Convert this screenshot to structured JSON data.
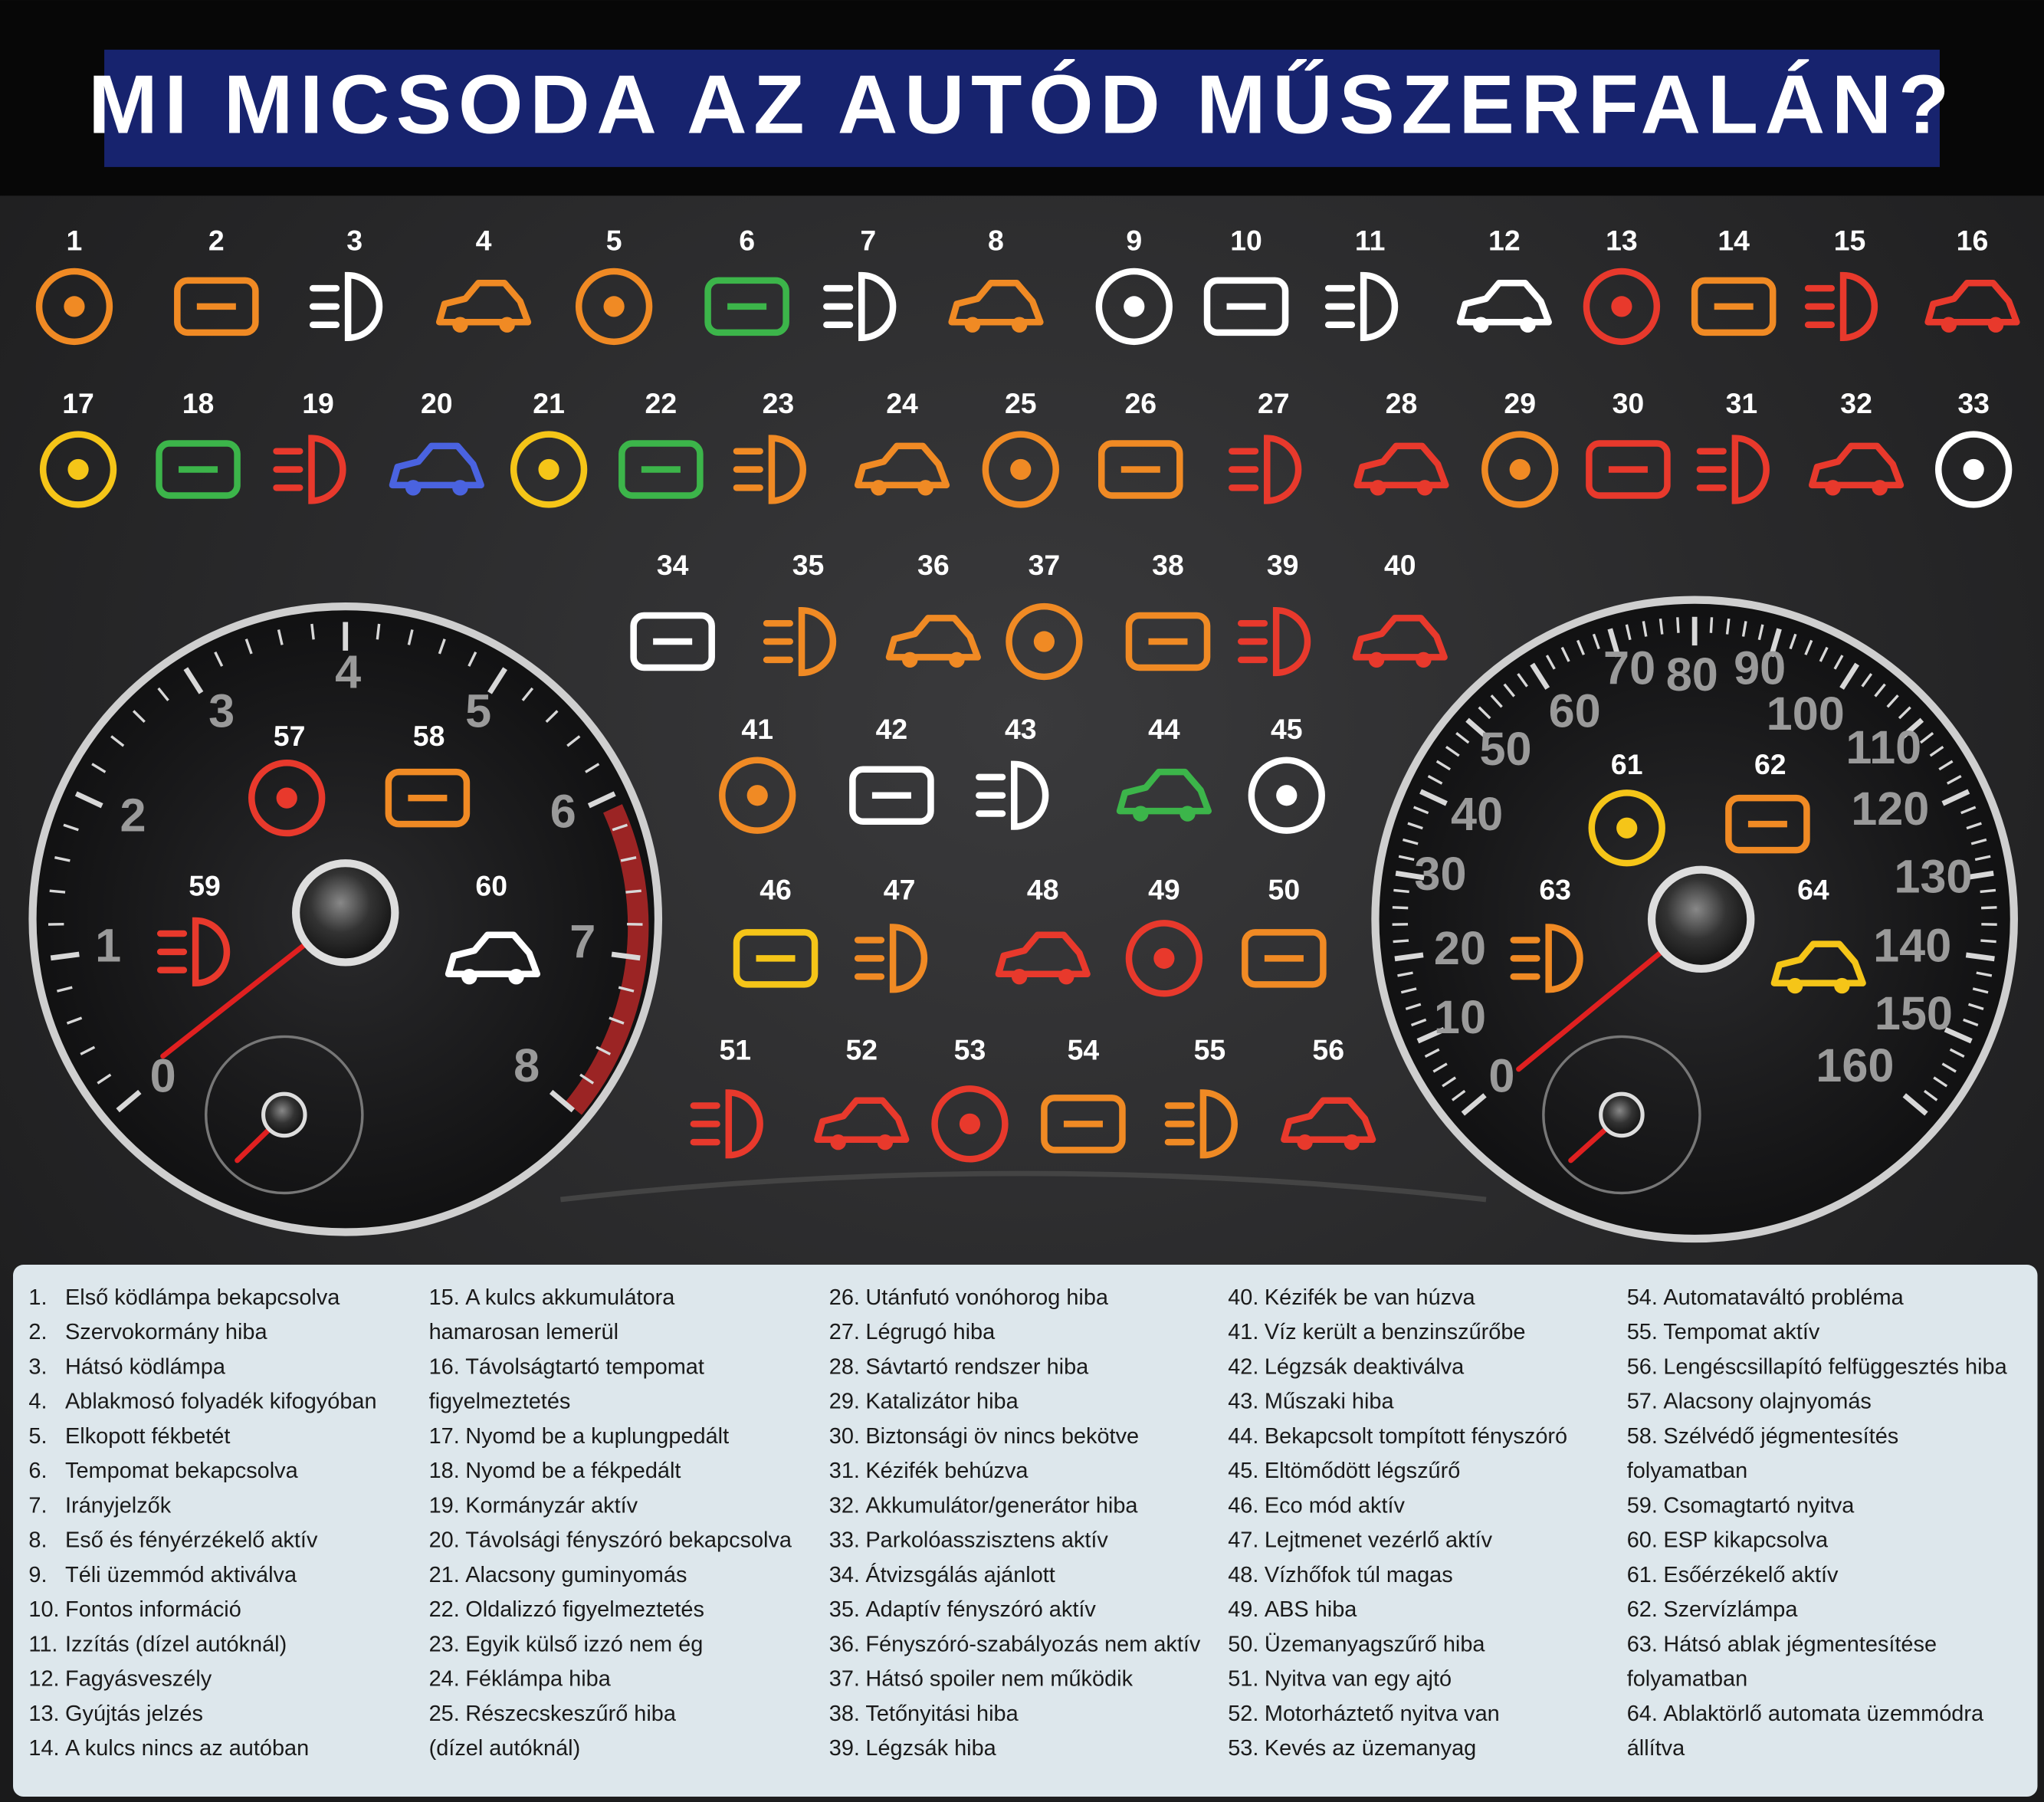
{
  "title": "MI MICSODA AZ AUTÓD MŰSZERFALÁN?",
  "lights": [
    "1",
    "2",
    "3",
    "4",
    "5",
    "6",
    "7",
    "8",
    "9",
    "10",
    "11",
    "12",
    "13",
    "14",
    "15",
    "16",
    "17",
    "18",
    "19",
    "20",
    "21",
    "22",
    "23",
    "24",
    "25",
    "26",
    "27",
    "28",
    "29",
    "30",
    "31",
    "32",
    "33",
    "34",
    "35",
    "36",
    "37",
    "38",
    "39",
    "40",
    "41",
    "42",
    "43",
    "44",
    "45",
    "46",
    "47",
    "48",
    "49",
    "50",
    "51",
    "52",
    "53",
    "54",
    "55",
    "56",
    "57",
    "58",
    "59",
    "60",
    "61",
    "62",
    "63",
    "64"
  ],
  "tachometer": {
    "labels": [
      "0",
      "1",
      "2",
      "3",
      "4",
      "5",
      "6",
      "7",
      "8"
    ]
  },
  "speedometer": {
    "labels": [
      "0",
      "10",
      "20",
      "30",
      "40",
      "50",
      "60",
      "70",
      "80",
      "90",
      "100",
      "110",
      "120",
      "130",
      "140",
      "150",
      "160"
    ]
  },
  "legend": [
    {
      "number": "1.",
      "lines": [
        "Első ködlámpa bekapcsolva"
      ]
    },
    {
      "number": "2.",
      "lines": [
        "Szervokormány hiba"
      ]
    },
    {
      "number": "3.",
      "lines": [
        "Hátsó ködlámpa"
      ]
    },
    {
      "number": "4.",
      "lines": [
        "Ablakmosó folyadék kifogyóban"
      ]
    },
    {
      "number": "5.",
      "lines": [
        "Elkopott fékbetét"
      ]
    },
    {
      "number": "6.",
      "lines": [
        "Tempomat bekapcsolva"
      ]
    },
    {
      "number": "7.",
      "lines": [
        "Irányjelzők"
      ]
    },
    {
      "number": "8.",
      "lines": [
        "Eső és fényérzékelő aktív"
      ]
    },
    {
      "number": "9.",
      "lines": [
        "Téli üzemmód aktiválva"
      ]
    },
    {
      "number": "10.",
      "lines": [
        "Fontos információ"
      ]
    },
    {
      "number": "11.",
      "lines": [
        "Izzítás (dízel autóknál)"
      ]
    },
    {
      "number": "12.",
      "lines": [
        "Fagyásveszély"
      ]
    },
    {
      "number": "13.",
      "lines": [
        "Gyújtás jelzés"
      ]
    },
    {
      "number": "14.",
      "lines": [
        "A kulcs nincs az autóban"
      ]
    },
    {
      "number": "15.",
      "lines": [
        "A kulcs akkumulátora",
        "hamarosan lemerül"
      ]
    },
    {
      "number": "16.",
      "lines": [
        "Távolságtartó tempomat",
        "figyelmeztetés"
      ]
    },
    {
      "number": "17.",
      "lines": [
        "Nyomd be a kuplungpedált"
      ]
    },
    {
      "number": "18.",
      "lines": [
        "Nyomd be a fékpedált"
      ]
    },
    {
      "number": "19.",
      "lines": [
        "Kormányzár aktív"
      ]
    },
    {
      "number": "20.",
      "lines": [
        "Távolsági fényszóró bekapcsolva"
      ]
    },
    {
      "number": "21.",
      "lines": [
        "Alacsony guminyomás"
      ]
    },
    {
      "number": "22.",
      "lines": [
        "Oldalizzó figyelmeztetés"
      ]
    },
    {
      "number": "23.",
      "lines": [
        "Egyik külső izzó nem ég"
      ]
    },
    {
      "number": "24.",
      "lines": [
        "Féklámpa hiba"
      ]
    },
    {
      "number": "25.",
      "lines": [
        "Részecskeszűrő hiba",
        "(dízel autóknál)"
      ]
    },
    {
      "number": "26.",
      "lines": [
        "Utánfutó vonóhorog hiba"
      ]
    },
    {
      "number": "27.",
      "lines": [
        "Légrugó hiba"
      ]
    },
    {
      "number": "28.",
      "lines": [
        "Sávtartó rendszer hiba"
      ]
    },
    {
      "number": "29.",
      "lines": [
        "Katalizátor hiba"
      ]
    },
    {
      "number": "30.",
      "lines": [
        "Biztonsági öv nincs bekötve"
      ]
    },
    {
      "number": "31.",
      "lines": [
        "Kézifék behúzva"
      ]
    },
    {
      "number": "32.",
      "lines": [
        "Akkumulátor/generátor hiba"
      ]
    },
    {
      "number": "33.",
      "lines": [
        "Parkolóasszisztens aktív"
      ]
    },
    {
      "number": "34.",
      "lines": [
        "Átvizsgálás ajánlott"
      ]
    },
    {
      "number": "35.",
      "lines": [
        "Adaptív fényszóró aktív"
      ]
    },
    {
      "number": "36.",
      "lines": [
        "Fényszóró-szabályozás nem aktív"
      ]
    },
    {
      "number": "37.",
      "lines": [
        "Hátsó spoiler nem működik"
      ]
    },
    {
      "number": "38.",
      "lines": [
        "Tetőnyitási hiba"
      ]
    },
    {
      "number": "39.",
      "lines": [
        "Légzsák hiba"
      ]
    },
    {
      "number": "40.",
      "lines": [
        "Kézifék be van húzva"
      ]
    },
    {
      "number": "41.",
      "lines": [
        "Víz került a benzinszűrőbe"
      ]
    },
    {
      "number": "42.",
      "lines": [
        "Légzsák deaktiválva"
      ]
    },
    {
      "number": "43.",
      "lines": [
        "Műszaki hiba"
      ]
    },
    {
      "number": "44.",
      "lines": [
        "Bekapcsolt tompított fényszóró"
      ]
    },
    {
      "number": "45.",
      "lines": [
        "Eltömődött légszűrő"
      ]
    },
    {
      "number": "46.",
      "lines": [
        "Eco mód aktív"
      ]
    },
    {
      "number": "47.",
      "lines": [
        "Lejtmenet vezérlő aktív"
      ]
    },
    {
      "number": "48.",
      "lines": [
        "Vízhőfok túl magas"
      ]
    },
    {
      "number": "49.",
      "lines": [
        "ABS hiba"
      ]
    },
    {
      "number": "50.",
      "lines": [
        "Üzemanyagszűrő hiba"
      ]
    },
    {
      "number": "51.",
      "lines": [
        "Nyitva van egy ajtó"
      ]
    },
    {
      "number": "52.",
      "lines": [
        "Motorháztető nyitva van"
      ]
    },
    {
      "number": "53.",
      "lines": [
        "Kevés az üzemanyag"
      ]
    },
    {
      "number": "54.",
      "lines": [
        "Automataváltó probléma"
      ]
    },
    {
      "number": "55.",
      "lines": [
        "Tempomat aktív"
      ]
    },
    {
      "number": "56.",
      "lines": [
        "Lengéscsillapító felfüggesztés hiba"
      ]
    },
    {
      "number": "57.",
      "lines": [
        "Alacsony olajnyomás"
      ]
    },
    {
      "number": "58.",
      "lines": [
        "Szélvédő jégmentesítés",
        "folyamatban"
      ]
    },
    {
      "number": "59.",
      "lines": [
        "Csomagtartó nyitva"
      ]
    },
    {
      "number": "60.",
      "lines": [
        "ESP kikapcsolva"
      ]
    },
    {
      "number": "61.",
      "lines": [
        "Esőérzékelő aktív"
      ]
    },
    {
      "number": "62.",
      "lines": [
        "Szervízlámpa"
      ]
    },
    {
      "number": "63.",
      "lines": [
        "Hátsó ablak jégmentesítése",
        "folyamatban"
      ]
    },
    {
      "number": "64.",
      "lines": [
        "Ablaktörlő automata üzemmódra",
        "állítva"
      ]
    }
  ]
}
